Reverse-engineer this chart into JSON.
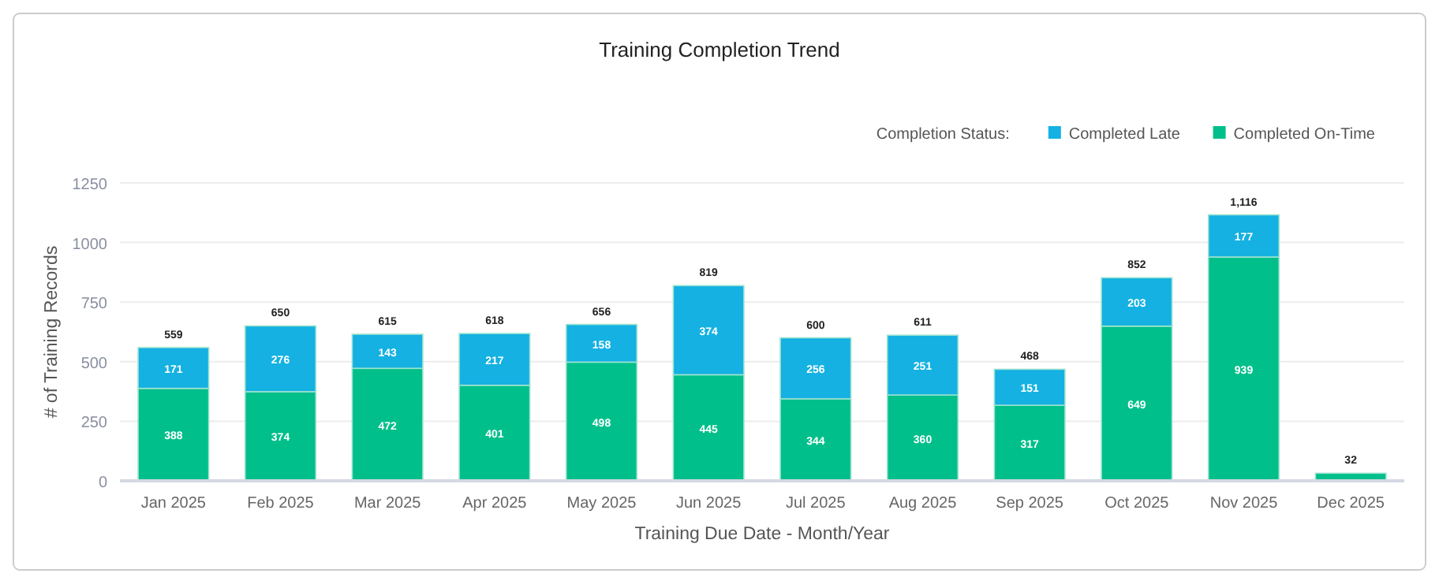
{
  "chart_data": {
    "type": "bar",
    "title": "Training Completion Trend",
    "xlabel": "Training Due Date - Month/Year",
    "ylabel": "# of Training Records",
    "legend_title": "Completion Status:",
    "categories": [
      "Jan 2025",
      "Feb 2025",
      "Mar 2025",
      "Apr 2025",
      "May 2025",
      "Jun 2025",
      "Jul 2025",
      "Aug 2025",
      "Sep 2025",
      "Oct 2025",
      "Nov 2025",
      "Dec 2025"
    ],
    "stacked": true,
    "ylim": [
      0,
      1250
    ],
    "yticks": [
      0,
      250,
      500,
      750,
      1000,
      1250
    ],
    "grid": "y",
    "legend": "top right",
    "series": [
      {
        "name": "Completed On-Time",
        "color": "#00bf8a",
        "values": [
          388,
          374,
          472,
          401,
          498,
          445,
          344,
          360,
          317,
          649,
          939,
          32
        ],
        "value_labels": [
          "388",
          "374",
          "472",
          "401",
          "498",
          "445",
          "344",
          "360",
          "317",
          "649",
          "939",
          null
        ]
      },
      {
        "name": "Completed Late",
        "color": "#14b1e2",
        "values": [
          171,
          276,
          143,
          217,
          158,
          374,
          256,
          251,
          151,
          203,
          177,
          null
        ],
        "value_labels": [
          "171",
          "276",
          "143",
          "217",
          "158",
          "374",
          "256",
          "251",
          "151",
          "203",
          "177",
          null
        ]
      }
    ],
    "totals": [
      "559",
      "650",
      "615",
      "618",
      "656",
      "819",
      "600",
      "611",
      "468",
      "852",
      "1,116",
      "32"
    ]
  }
}
